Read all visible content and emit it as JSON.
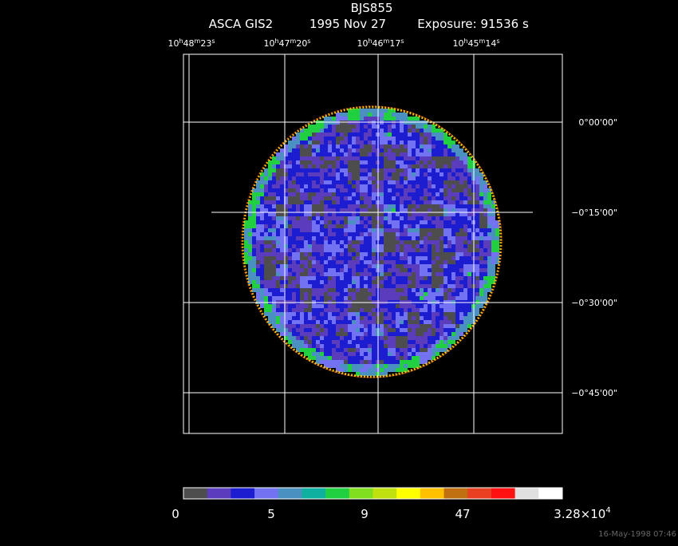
{
  "header": {
    "title": "BJS855",
    "instrument": "ASCA GIS2",
    "date": "1995 Nov 27",
    "exposure": "Exposure: 91536 s"
  },
  "ra_labels": [
    {
      "h": "10",
      "m": "48",
      "s": "23"
    },
    {
      "h": "10",
      "m": "47",
      "s": "20"
    },
    {
      "h": "10",
      "m": "46",
      "s": "17"
    },
    {
      "h": "10",
      "m": "45",
      "s": "14"
    }
  ],
  "ra_units": [
    "h",
    "m",
    "s"
  ],
  "dec_labels": [
    "0°00'00\"",
    "−0°15'00\"",
    "−0°30'00\"",
    "−0°45'00\""
  ],
  "colorbar": {
    "colors": [
      "#4d4d4d",
      "#5a3cbc",
      "#1c1cd0",
      "#7272f2",
      "#4a90c0",
      "#10b0a0",
      "#20d040",
      "#80e020",
      "#c0e010",
      "#ffff00",
      "#ffc000",
      "#c07010",
      "#e84020",
      "#ff1010",
      "#e0e0e0",
      "#ffffff"
    ],
    "labels": [
      "0",
      "5",
      "9",
      "47"
    ],
    "max_label": {
      "mantissa": "3.28×10",
      "exponent": "4"
    }
  },
  "timestamp": "16-May-1998 07:46"
}
